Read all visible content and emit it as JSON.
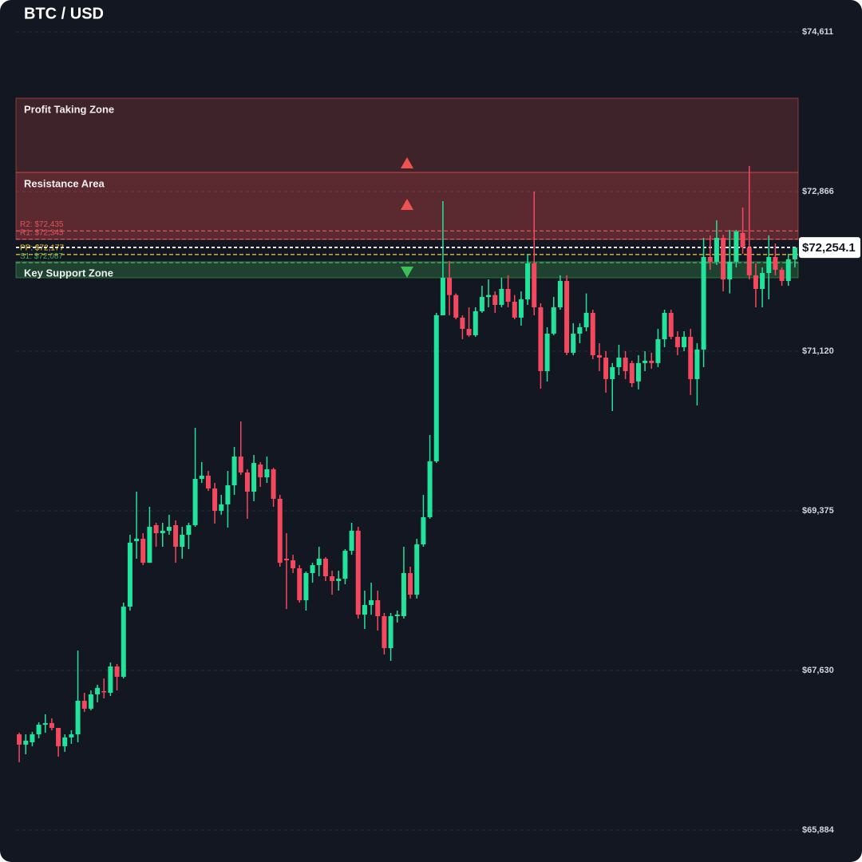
{
  "chart_data": {
    "type": "candlestick",
    "title": "BTC / USD",
    "up_color": "#22e39b",
    "down_color": "#f2495f",
    "ylim": [
      65884,
      74611
    ],
    "yticks": [
      {
        "value": 65884,
        "label": "$65,884"
      },
      {
        "value": 67630,
        "label": "$67,630"
      },
      {
        "value": 69375,
        "label": "$69,375"
      },
      {
        "value": 71120,
        "label": "$71,120"
      },
      {
        "value": 72866,
        "label": "$72,866"
      },
      {
        "value": 74611,
        "label": "$74,611"
      }
    ],
    "grid": true,
    "open": [
      66931,
      66818,
      66844,
      66931,
      67036,
      67054,
      67001,
      66801,
      66897,
      66931,
      67298,
      67211,
      67368,
      67403,
      67385,
      67673,
      67560,
      68327,
      69043,
      69069,
      68807,
      69218,
      69130,
      69157,
      69218,
      68982,
      69113,
      69218,
      69724,
      69759,
      69619,
      69375,
      69445,
      69654,
      69968,
      69794,
      69584,
      69881,
      69741,
      69829,
      69506,
      68851,
      68834,
      68746,
      68397,
      68694,
      68781,
      68851,
      68659,
      68607,
      68633,
      68938,
      69157,
      68240,
      68345,
      68397,
      68223,
      67874,
      68223,
      68223,
      68694,
      68458,
      69008,
      69305,
      69916,
      71513,
      71923,
      71734,
      71487,
      71364,
      71294,
      71557,
      71713,
      71734,
      71626,
      71801,
      71661,
      71487,
      71687,
      72080,
      71600,
      70902,
      71312,
      71600,
      71888,
      71103,
      71312,
      71382,
      71539,
      71076,
      71050,
      70815,
      70946,
      71050,
      70990,
      70789,
      70990,
      71016,
      70990,
      71251,
      71539,
      71277,
      71164,
      71277,
      70815,
      71138,
      72150,
      72098,
      72359,
      71905,
      72098,
      72412,
      72254,
      71950,
      71801,
      71975,
      72150,
      72010,
      71888,
      72124
    ],
    "high": [
      66949,
      66931,
      66958,
      67062,
      67150,
      67106,
      67001,
      66931,
      66975,
      67847,
      67385,
      67411,
      67473,
      67542,
      67716,
      67699,
      68371,
      69113,
      69584,
      69130,
      69419,
      69244,
      69244,
      69332,
      69270,
      69200,
      69244,
      70282,
      69907,
      69811,
      69680,
      69549,
      69811,
      70073,
      70352,
      69829,
      69986,
      69907,
      69968,
      69846,
      69549,
      69130,
      68895,
      68781,
      68711,
      68807,
      68982,
      68869,
      68720,
      68720,
      68956,
      69244,
      69200,
      68502,
      68589,
      68502,
      68258,
      68258,
      68284,
      68982,
      68764,
      69069,
      69549,
      70204,
      71539,
      72761,
      72106,
      71752,
      71513,
      71600,
      71600,
      71835,
      71905,
      71774,
      71923,
      71950,
      71734,
      71774,
      72184,
      72866,
      71644,
      71382,
      71713,
      71950,
      71950,
      71426,
      71426,
      71752,
      71574,
      71207,
      71120,
      70990,
      71190,
      71120,
      71016,
      71076,
      71120,
      71103,
      71364,
      71574,
      71574,
      71338,
      71338,
      71364,
      71207,
      72359,
      72386,
      72551,
      72394,
      72447,
      72447,
      72691,
      73145,
      72080,
      72036,
      72386,
      72298,
      72036,
      72184,
      72254
    ],
    "low": [
      66626,
      66713,
      66801,
      66888,
      66949,
      66975,
      66687,
      66739,
      66827,
      66844,
      67176,
      67193,
      67280,
      67324,
      67350,
      67411,
      67542,
      68284,
      68851,
      68781,
      68807,
      68982,
      68982,
      69113,
      68807,
      68851,
      68956,
      69200,
      69680,
      69593,
      69236,
      69332,
      69192,
      69549,
      69768,
      69288,
      69480,
      69637,
      69680,
      69419,
      68764,
      68301,
      68694,
      68371,
      68284,
      68589,
      68659,
      68607,
      68458,
      68502,
      68572,
      68895,
      68197,
      68083,
      68240,
      68066,
      67804,
      67734,
      68153,
      68197,
      68415,
      68415,
      68982,
      69288,
      69898,
      71513,
      71513,
      71469,
      71251,
      71277,
      71277,
      71539,
      71600,
      71539,
      71600,
      71600,
      71469,
      71399,
      71626,
      71513,
      70710,
      70789,
      71294,
      71574,
      71076,
      71076,
      71207,
      71338,
      71033,
      70902,
      70667,
      70466,
      70859,
      70815,
      70728,
      70702,
      70902,
      70928,
      70946,
      71164,
      71251,
      71076,
      71120,
      70641,
      70527,
      70946,
      72010,
      72063,
      71774,
      71752,
      72036,
      72184,
      71905,
      71600,
      71600,
      71687,
      71950,
      71835,
      71835,
      72036
    ],
    "close": [
      66818,
      66862,
      66931,
      67036,
      67054,
      67001,
      66801,
      66897,
      66931,
      67298,
      67211,
      67368,
      67438,
      67394,
      67673,
      67560,
      68327,
      69026,
      69069,
      68807,
      69200,
      69130,
      69157,
      69200,
      68982,
      69113,
      69218,
      69724,
      69759,
      69619,
      69375,
      69445,
      69654,
      69968,
      69794,
      69584,
      69898,
      69741,
      69829,
      69506,
      68807,
      68834,
      68746,
      68397,
      68694,
      68781,
      68851,
      68659,
      68607,
      68633,
      68938,
      69157,
      68240,
      68345,
      68397,
      68223,
      67874,
      68223,
      68240,
      68694,
      68458,
      69008,
      69305,
      69916,
      71513,
      71923,
      71734,
      71487,
      71364,
      71294,
      71557,
      71713,
      71734,
      71626,
      71801,
      71661,
      71487,
      71687,
      72080,
      71600,
      70902,
      71312,
      71600,
      71888,
      71103,
      71312,
      71382,
      71539,
      71076,
      71050,
      70815,
      70946,
      71050,
      70902,
      70771,
      70990,
      71016,
      70990,
      71251,
      71539,
      71277,
      71164,
      71277,
      70815,
      71138,
      72150,
      72098,
      72359,
      71905,
      72098,
      72429,
      72254,
      71950,
      71801,
      71975,
      72150,
      72010,
      71888,
      72124,
      72254
    ],
    "zones": [
      {
        "label": "Profit Taking Zone",
        "top": 73887,
        "bottom": 73075,
        "color": "#ef5350",
        "opacity": 0.2
      },
      {
        "label": "Resistance Area",
        "top": 73075,
        "bottom": 72342,
        "color": "#ef5350",
        "opacity": 0.33
      },
      {
        "label": "Key Support Zone",
        "top": 72098,
        "bottom": 71923,
        "color": "#3fbf5a",
        "opacity": 0.25
      }
    ],
    "pivots": [
      {
        "label": "R2: $72,435",
        "value": 72435,
        "color": "#e0535a"
      },
      {
        "label": "R1: $72,345",
        "value": 72345,
        "color": "#e0535a"
      },
      {
        "label": "PP: $72,177",
        "value": 72177,
        "color": "#f2d13a"
      },
      {
        "label": "S1: $72,087",
        "value": 72087,
        "color": "#4aa85c"
      }
    ],
    "current_price": {
      "value": 72254.1,
      "label": "$72,254.1"
    }
  }
}
